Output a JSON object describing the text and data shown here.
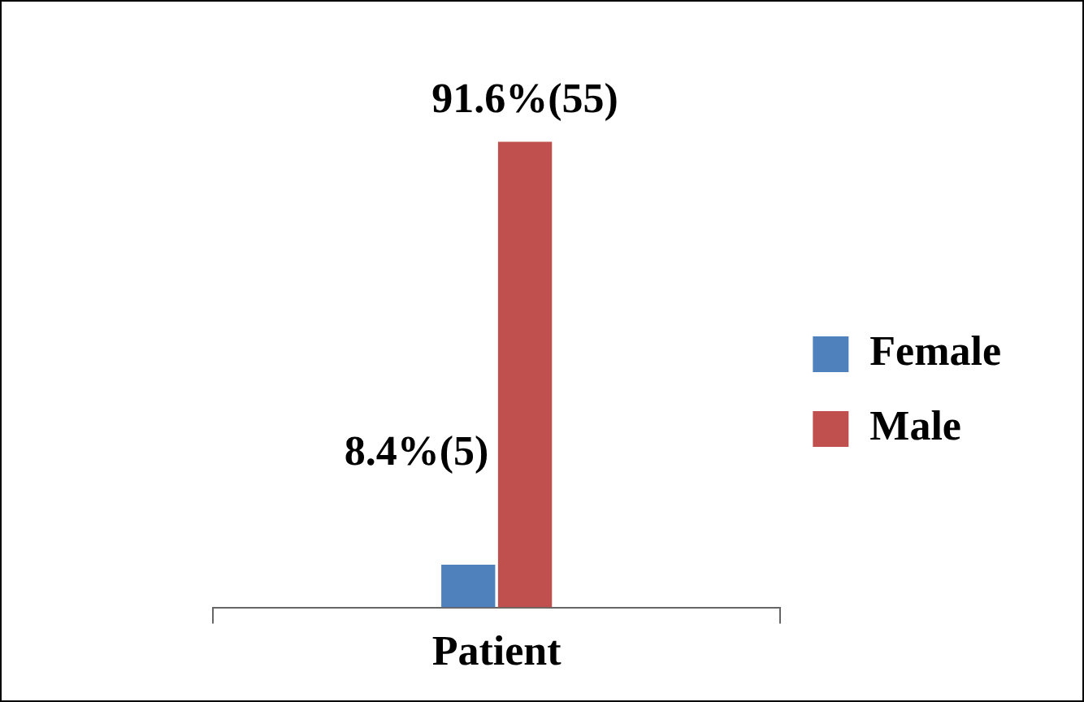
{
  "chart_data": {
    "type": "bar",
    "categories": [
      "Patient"
    ],
    "series": [
      {
        "name": "Female",
        "color": "#4f81bd",
        "values": [
          8.4
        ],
        "value_labels": [
          "8.4%(5)"
        ]
      },
      {
        "name": "Male",
        "color": "#c0504d",
        "values": [
          91.6
        ],
        "value_labels": [
          "91.6%(55)"
        ]
      }
    ],
    "legend": "right",
    "grid": false
  }
}
